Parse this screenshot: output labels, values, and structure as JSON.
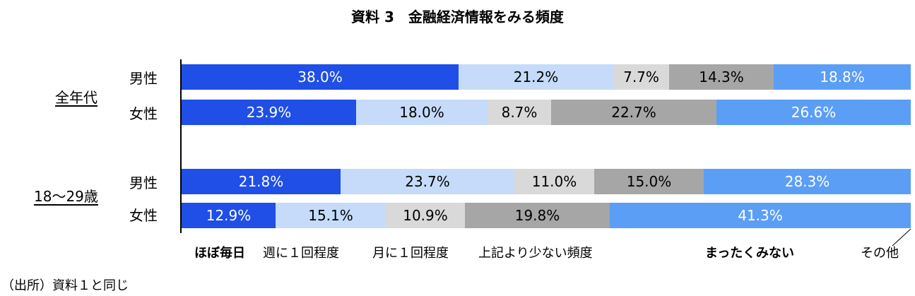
{
  "chart_data": {
    "type": "bar",
    "stacked": "100%",
    "orientation": "horizontal",
    "title": "資料 3　金融経済情報をみる頻度",
    "groups": [
      {
        "label": "全年代",
        "rows": [
          {
            "label": "男性",
            "values": [
              38.0,
              21.2,
              7.7,
              14.3,
              18.8
            ]
          },
          {
            "label": "女性",
            "values": [
              23.9,
              18.0,
              8.7,
              22.7,
              26.6
            ]
          }
        ]
      },
      {
        "label": "18〜29歳",
        "rows": [
          {
            "label": "男性",
            "values": [
              21.8,
              23.7,
              11.0,
              15.0,
              28.3
            ]
          },
          {
            "label": "女性",
            "values": [
              12.9,
              15.1,
              10.9,
              19.8,
              41.3
            ]
          }
        ]
      }
    ],
    "series": [
      {
        "name": "ほぼ毎日",
        "color": "#1f4fe6",
        "text_color": "#ffffff"
      },
      {
        "name": "週に１回程度",
        "color": "#c5dbf9",
        "text_color": "#000000"
      },
      {
        "name": "月に１回程度",
        "color": "#d9d9d9",
        "text_color": "#000000"
      },
      {
        "name": "上記より少ない頻度",
        "color": "#a6a6a6",
        "text_color": "#000000"
      },
      {
        "name": "まったくみない",
        "color": "#5b9ef5",
        "text_color": "#ffffff"
      }
    ],
    "other_label": "その他",
    "xlim": [
      0,
      100
    ]
  },
  "source": "（出所）資料１と同じ"
}
